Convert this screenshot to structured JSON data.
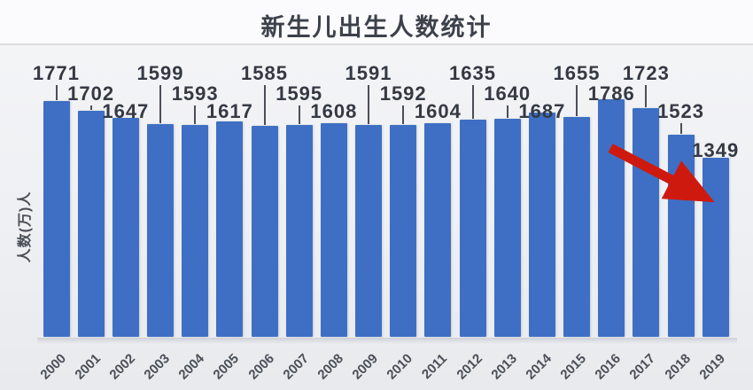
{
  "chart_data": {
    "type": "bar",
    "title": "新生儿出生人数统计",
    "ylabel": "人数(万)人",
    "xlabel": "",
    "categories": [
      "2000",
      "2001",
      "2002",
      "2003",
      "2004",
      "2005",
      "2006",
      "2007",
      "2008",
      "2009",
      "2010",
      "2011",
      "2012",
      "2013",
      "2014",
      "2015",
      "2016",
      "2017",
      "2018",
      "2019"
    ],
    "values": [
      1771,
      1702,
      1647,
      1599,
      1593,
      1617,
      1585,
      1595,
      1608,
      1591,
      1592,
      1604,
      1635,
      1640,
      1687,
      1655,
      1786,
      1723,
      1523,
      1349
    ],
    "ylim": [
      0,
      1800
    ],
    "grid": false,
    "legend": "none",
    "data_labels": true,
    "label_levels": [
      1,
      2,
      3,
      1,
      2,
      3,
      1,
      2,
      3,
      1,
      2,
      3,
      1,
      2,
      3,
      1,
      2,
      1,
      3,
      4
    ],
    "annotations": [
      {
        "type": "arrow",
        "description": "red downward trend arrow across 2016-2019 bars"
      }
    ]
  },
  "colors": {
    "bar": "#3e6fc4",
    "title": "#3d414b",
    "value_label": "#353943",
    "axis_label": "#4b4f58",
    "leader_line": "#4a4e57",
    "arrow": "#ce1a0e",
    "divider": "#dcdde0"
  }
}
